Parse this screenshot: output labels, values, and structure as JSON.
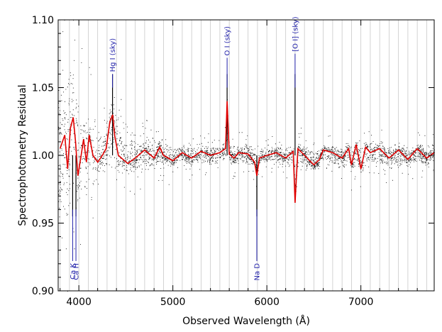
{
  "chart_data": {
    "type": "scatter",
    "xlabel": "Observed Wavelength (Å)",
    "ylabel": "Spectrophotometry Residual",
    "xlim": [
      3780,
      7780
    ],
    "ylim": [
      0.9,
      1.1
    ],
    "x_ticks": [
      {
        "value": 4000,
        "label": "4000"
      },
      {
        "value": 5000,
        "label": "5000"
      },
      {
        "value": 6000,
        "label": "6000"
      },
      {
        "value": 7000,
        "label": "7000"
      }
    ],
    "y_ticks": [
      {
        "value": 0.9,
        "label": "0.90"
      },
      {
        "value": 0.95,
        "label": "0.95"
      },
      {
        "value": 1.0,
        "label": "1.00"
      },
      {
        "value": 1.05,
        "label": "1.05"
      },
      {
        "value": 1.1,
        "label": "1.10"
      }
    ],
    "vertical_grid_lines": [
      3800,
      3900,
      4000,
      4100,
      4200,
      4300,
      4400,
      4500,
      4600,
      4700,
      4800,
      4900,
      5000,
      5100,
      5200,
      5300,
      5400,
      5500,
      5600,
      5700,
      5800,
      5900,
      6000,
      6100,
      6200,
      6300,
      6400,
      6500,
      6600,
      6700,
      6800,
      6900,
      7000,
      7100,
      7200,
      7300,
      7400,
      7500,
      7600,
      7700
    ],
    "series": [
      {
        "style": "points",
        "color": "#000000",
        "envelope": {
          "x": [
            3800,
            3850,
            3900,
            3950,
            4000,
            4050,
            4100,
            4200,
            4300,
            4360,
            4500,
            4700,
            5000,
            5300,
            5500,
            5800,
            6000,
            6300,
            6500,
            6800,
            7000,
            7200,
            7400,
            7600,
            7780
          ],
          "lower": [
            0.93,
            0.94,
            0.93,
            0.94,
            0.955,
            0.965,
            0.97,
            0.975,
            0.98,
            0.985,
            0.983,
            0.985,
            0.99,
            0.992,
            0.992,
            0.992,
            0.993,
            0.99,
            0.988,
            0.99,
            0.985,
            0.988,
            0.99,
            0.99,
            0.99
          ],
          "upper": [
            1.075,
            1.07,
            1.085,
            1.07,
            1.055,
            1.04,
            1.035,
            1.025,
            1.03,
            1.05,
            1.03,
            1.015,
            1.01,
            1.01,
            1.01,
            1.01,
            1.008,
            1.01,
            1.008,
            1.01,
            1.012,
            1.012,
            1.01,
            1.01,
            1.01
          ]
        },
        "outlier_spread": 0.05
      },
      {
        "style": "line",
        "color": "#e00000",
        "x": [
          3800,
          3850,
          3880,
          3910,
          3940,
          3965,
          3990,
          4020,
          4050,
          4080,
          4110,
          4150,
          4200,
          4250,
          4290,
          4330,
          4360,
          4380,
          4420,
          4470,
          4520,
          4600,
          4700,
          4800,
          4860,
          4900,
          5000,
          5100,
          5200,
          5300,
          5400,
          5500,
          5560,
          5577,
          5600,
          5650,
          5700,
          5800,
          5870,
          5893,
          5920,
          6000,
          6100,
          6200,
          6280,
          6300,
          6330,
          6400,
          6500,
          6560,
          6600,
          6700,
          6800,
          6870,
          6900,
          6950,
          7000,
          7050,
          7100,
          7200,
          7300,
          7400,
          7500,
          7600,
          7700,
          7780
        ],
        "y": [
          1.005,
          1.015,
          0.99,
          1.02,
          1.028,
          1.01,
          0.985,
          0.998,
          1.012,
          0.995,
          1.015,
          1.0,
          0.995,
          1.0,
          1.005,
          1.025,
          1.03,
          1.015,
          1.0,
          0.997,
          0.994,
          0.998,
          1.004,
          0.998,
          1.006,
          1.0,
          0.996,
          1.002,
          0.998,
          1.003,
          1.0,
          1.002,
          1.005,
          1.04,
          1.001,
          0.998,
          1.002,
          1.001,
          0.995,
          0.985,
          0.998,
          1.0,
          1.002,
          0.998,
          1.003,
          0.965,
          1.005,
          1.0,
          0.993,
          0.997,
          1.004,
          1.002,
          0.998,
          1.005,
          0.993,
          1.008,
          0.99,
          1.006,
          1.002,
          1.005,
          0.998,
          1.004,
          0.997,
          1.005,
          0.998,
          1.002
        ]
      }
    ],
    "annotations": [
      {
        "text": "Hg I (sky)",
        "x": 4358,
        "y_from": 1.05,
        "y_to": 1.06,
        "color": "#2222aa"
      },
      {
        "text": "O I (sky)",
        "x": 5577,
        "y_from": 1.05,
        "y_to": 1.072,
        "color": "#2222aa"
      },
      {
        "text": "[O I] (sky)",
        "x": 6300,
        "y_from": 1.05,
        "y_to": 1.075,
        "color": "#2222aa"
      },
      {
        "text": "Ca K",
        "x": 3934,
        "y_from": 0.922,
        "y_to": 0.96,
        "color": "#2222aa"
      },
      {
        "text": "Ca H",
        "x": 3969,
        "y_from": 0.922,
        "y_to": 0.96,
        "color": "#2222aa"
      },
      {
        "text": "Na D",
        "x": 5893,
        "y_from": 0.922,
        "y_to": 0.96,
        "color": "#2222aa"
      }
    ],
    "grid": true,
    "legend": "none"
  }
}
